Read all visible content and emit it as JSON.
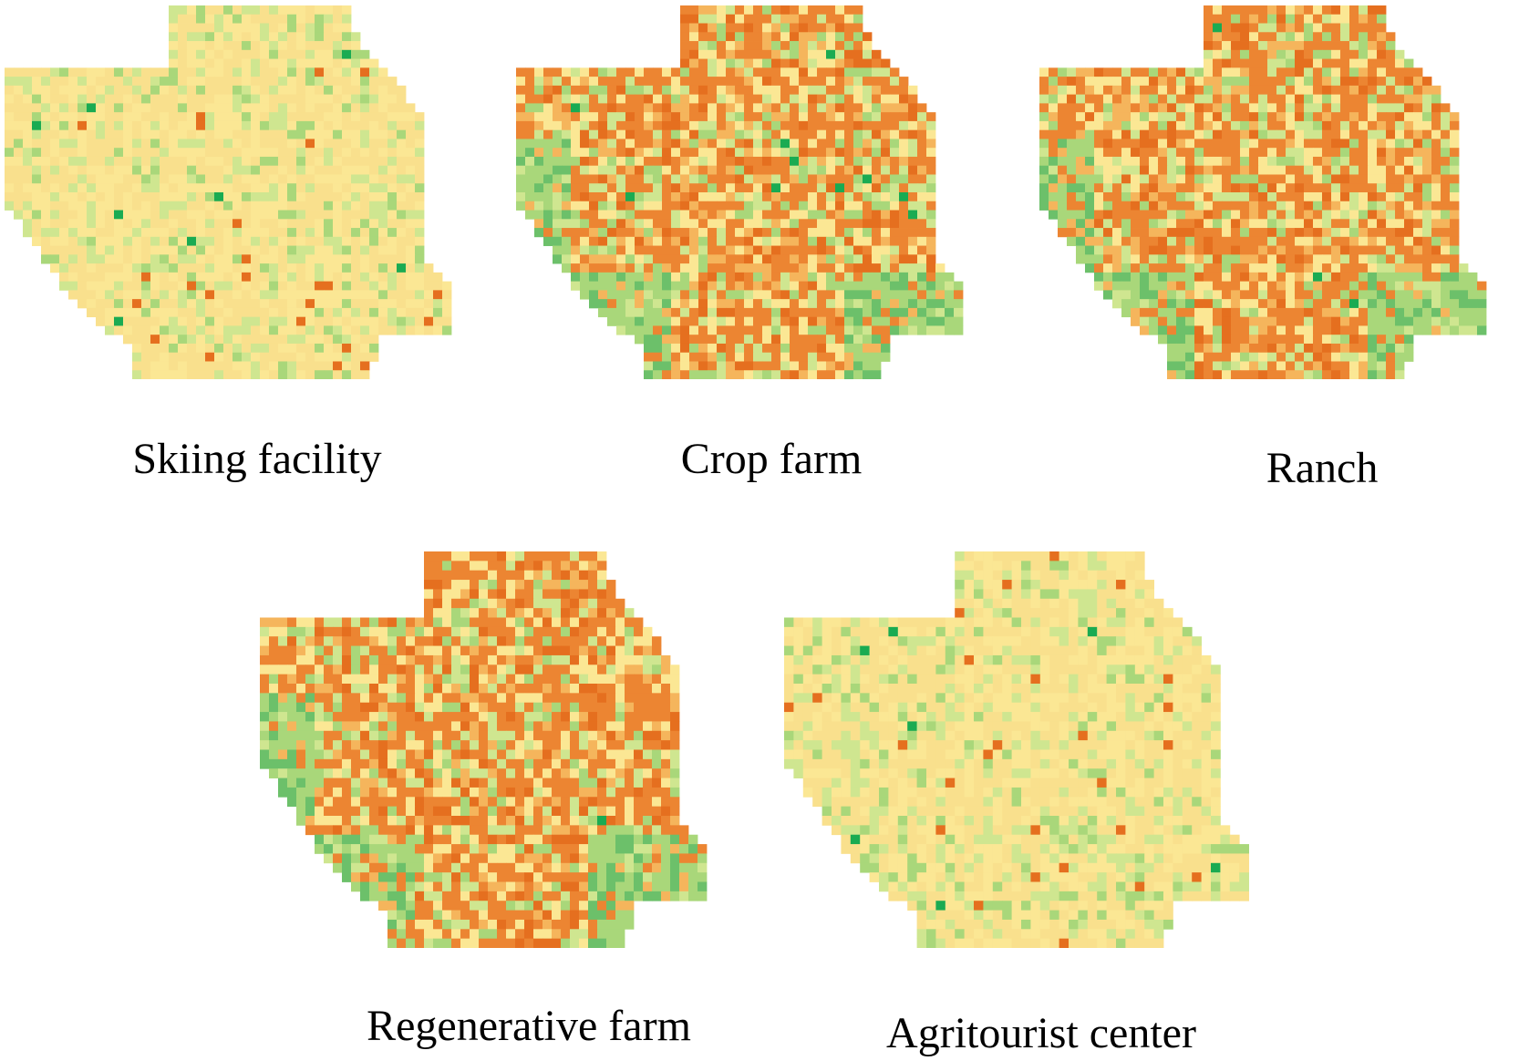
{
  "figure": {
    "panels": [
      {
        "id": "skiing",
        "label": "Skiing facility",
        "pattern": "sparse",
        "seed": 11
      },
      {
        "id": "crop",
        "label": "Crop farm",
        "pattern": "dense",
        "seed": 23
      },
      {
        "id": "ranch",
        "label": "Ranch",
        "pattern": "dense",
        "seed": 37
      },
      {
        "id": "regen",
        "label": "Regenerative farm",
        "pattern": "dense",
        "seed": 53
      },
      {
        "id": "agri",
        "label": "Agritourist center",
        "pattern": "sparse",
        "seed": 71
      }
    ],
    "palette": {
      "dark_green": "#1aab52",
      "green": "#6cc06a",
      "light_green": "#a9d77a",
      "pale_green": "#cfe690",
      "light_yellow": "#fbe794",
      "yellow": "#f9e08d",
      "light_orange": "#f5b55c",
      "orange": "#ec8532",
      "dark_orange": "#e56f1f"
    }
  }
}
